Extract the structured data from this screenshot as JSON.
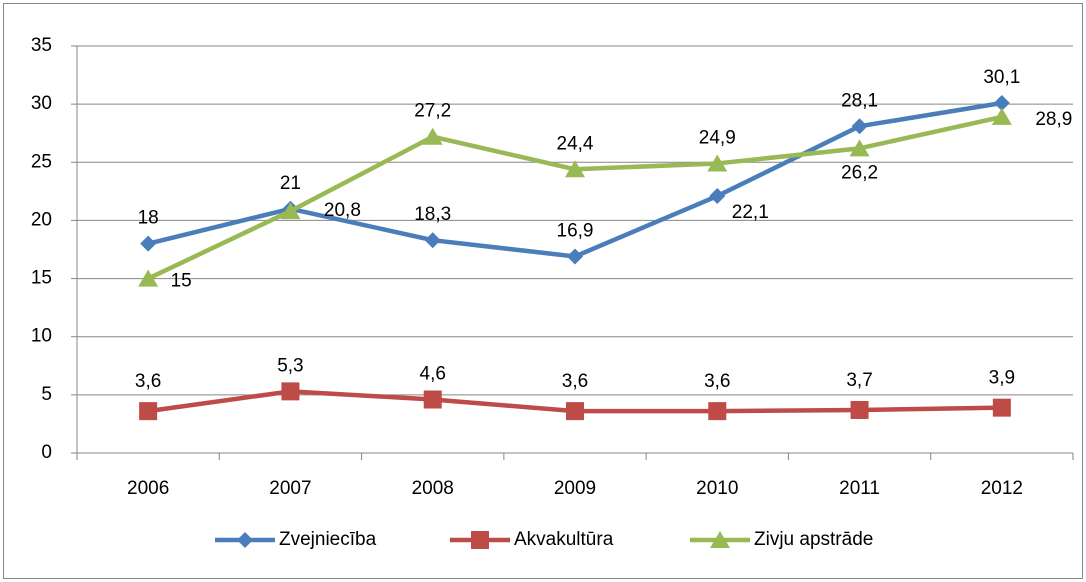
{
  "chart_data": {
    "type": "line",
    "categories": [
      "2006",
      "2007",
      "2008",
      "2009",
      "2010",
      "2011",
      "2012"
    ],
    "series": [
      {
        "name": "Zvejniecība",
        "color": "#4a7ebb",
        "marker": "diamond",
        "values": [
          18,
          21,
          18.3,
          16.9,
          22.1,
          28.1,
          30.1
        ],
        "value_labels": [
          "18",
          "21",
          "18,3",
          "16,9",
          "22,1",
          "28,1",
          "30,1"
        ]
      },
      {
        "name": "Akvakultūra",
        "color": "#be4b48",
        "marker": "square",
        "values": [
          3.6,
          5.3,
          4.6,
          3.6,
          3.6,
          3.7,
          3.9
        ],
        "value_labels": [
          "3,6",
          "5,3",
          "4,6",
          "3,6",
          "3,6",
          "3,7",
          "3,9"
        ]
      },
      {
        "name": "Zivju apstrāde",
        "color": "#98b954",
        "marker": "triangle",
        "values": [
          15,
          20.8,
          27.2,
          24.4,
          24.9,
          26.2,
          28.9
        ],
        "value_labels": [
          "15",
          "20,8",
          "27,2",
          "24,4",
          "24,9",
          "26,2",
          "28,9"
        ]
      }
    ],
    "ylim": [
      0,
      35
    ],
    "yticks": [
      0,
      5,
      10,
      15,
      20,
      25,
      30,
      35
    ],
    "grid": true,
    "legend": "bottom"
  }
}
